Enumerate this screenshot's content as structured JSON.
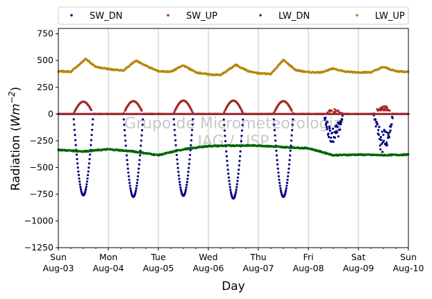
{
  "chart_data": {
    "type": "scatter",
    "title": "",
    "xlabel": "Day",
    "ylabel_main": "Radiation (",
    "ylabel_unit_base": "Wm",
    "ylabel_unit_exp": "−2",
    "ylabel_close": ")",
    "watermark": [
      "Grupo de Micrometeorologia",
      "IAG / USP"
    ],
    "ylim": [
      -1250,
      800
    ],
    "xlim_days": [
      0,
      7
    ],
    "yticks": [
      750,
      500,
      250,
      0,
      -250,
      -500,
      -750,
      -1000,
      -1250
    ],
    "ytick_labels": [
      "750",
      "500",
      "250",
      "0",
      "−250",
      "−500",
      "−750",
      "−1000",
      "−1250"
    ],
    "xticks": [
      {
        "day": 0,
        "weekday": "Sun",
        "date": "Aug-03"
      },
      {
        "day": 1,
        "weekday": "Mon",
        "date": "Aug-04"
      },
      {
        "day": 2,
        "weekday": "Tue",
        "date": "Aug-05"
      },
      {
        "day": 3,
        "weekday": "Wed",
        "date": "Aug-06"
      },
      {
        "day": 4,
        "weekday": "Thu",
        "date": "Aug-07"
      },
      {
        "day": 5,
        "weekday": "Fri",
        "date": "Aug-08"
      },
      {
        "day": 6,
        "weekday": "Sat",
        "date": "Aug-09"
      },
      {
        "day": 7,
        "weekday": "Sun",
        "date": "Aug-10"
      }
    ],
    "grid": "vertical",
    "legend_position": "top",
    "series": [
      {
        "name": "SW_DN",
        "color": "#00007f",
        "day_peaks": [
          -760,
          -775,
          -765,
          -790,
          -775,
          -300,
          -380
        ],
        "night_value": 0,
        "daylight_hours": [
          7.2,
          16.8
        ]
      },
      {
        "name": "SW_UP",
        "color": "#a52a2a",
        "day_peaks": [
          115,
          120,
          125,
          125,
          120,
          45,
          80
        ],
        "night_value": 0,
        "daylight_hours": [
          7.2,
          16.8
        ]
      },
      {
        "name": "LW_DN",
        "color": "#006400",
        "points_days": [
          0,
          0.5,
          1,
          1.5,
          2,
          2.5,
          3,
          3.5,
          4,
          4.5,
          5,
          5.5,
          6,
          6.5,
          7
        ],
        "points_values": [
          -335,
          -350,
          -330,
          -350,
          -385,
          -330,
          -300,
          -295,
          -295,
          -310,
          -320,
          -385,
          -380,
          -385,
          -380
        ]
      },
      {
        "name": "LW_UP",
        "color": "#b8860b",
        "points_days": [
          0,
          0.25,
          0.55,
          0.75,
          1,
          1.3,
          1.55,
          1.8,
          2,
          2.25,
          2.5,
          2.75,
          3,
          3.25,
          3.55,
          3.8,
          4,
          4.25,
          4.5,
          4.75,
          5,
          5.25,
          5.5,
          5.75,
          6,
          6.25,
          6.5,
          6.75,
          7
        ],
        "points_values": [
          400,
          395,
          515,
          440,
          420,
          405,
          500,
          440,
          400,
          395,
          455,
          390,
          370,
          365,
          460,
          400,
          380,
          375,
          505,
          410,
          390,
          390,
          425,
          395,
          390,
          390,
          440,
          400,
          395
        ]
      }
    ]
  }
}
